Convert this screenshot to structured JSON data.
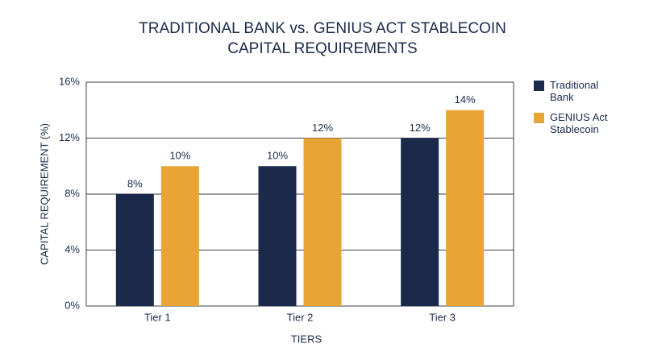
{
  "chart_data": {
    "type": "bar",
    "title": [
      "TRADITIONAL BANK vs. GENIUS ACT STABLECOIN",
      "CAPITAL REQUIREMENTS"
    ],
    "x_label": "TIERS",
    "y_label": "CAPITAL REQUIREMENT (%)",
    "categories": [
      "Tier 1",
      "Tier 2",
      "Tier 3"
    ],
    "series": [
      {
        "name": "Traditional Bank",
        "color": "#1b2a4a",
        "values": [
          8,
          10,
          12
        ],
        "value_labels": [
          "8%",
          "10%",
          "12%"
        ]
      },
      {
        "name": "GENIUS Act Stablecoin",
        "color": "#e9a436",
        "values": [
          10,
          12,
          14
        ],
        "value_labels": [
          "10%",
          "12%",
          "14%"
        ]
      }
    ],
    "ylim": [
      0,
      16
    ],
    "yticks": [
      {
        "value": 0,
        "label": "0%"
      },
      {
        "value": 4,
        "label": "4%"
      },
      {
        "value": 8,
        "label": "8%"
      },
      {
        "value": 12,
        "label": "12%"
      },
      {
        "value": 16,
        "label": "16%"
      }
    ],
    "grid": true,
    "legend": "right"
  }
}
